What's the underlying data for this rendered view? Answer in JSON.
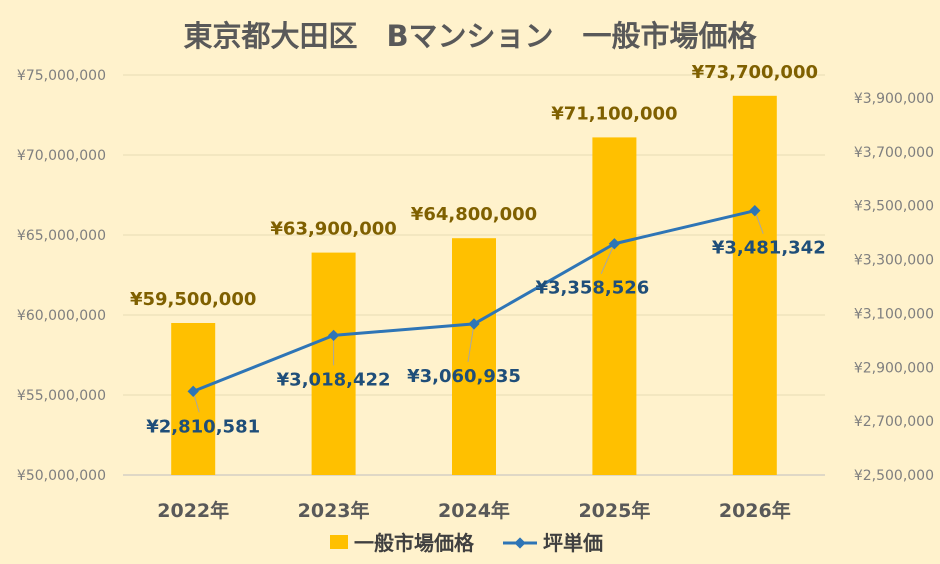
{
  "chart_data": {
    "type": "bar",
    "title": "東京都大田区　Bマンション　一般市場価格",
    "categories": [
      "2022年",
      "2023年",
      "2024年",
      "2025年",
      "2026年"
    ],
    "series": [
      {
        "name": "一般市場価格",
        "type": "bar",
        "axis": "left",
        "color": "#FFC000",
        "values": [
          59500000,
          63900000,
          64800000,
          71100000,
          73700000
        ],
        "labels": [
          "¥59,500,000",
          "¥63,900,000",
          "¥64,800,000",
          "¥71,100,000",
          "¥73,700,000"
        ]
      },
      {
        "name": "坪単価",
        "type": "line",
        "axis": "right",
        "color": "#2E75B6",
        "values": [
          2810581,
          3018422,
          3060935,
          3358526,
          3481342
        ],
        "labels": [
          "¥2,810,581",
          "¥3,018,422",
          "¥3,060,935",
          "¥3,358,526",
          "¥3,481,342"
        ]
      }
    ],
    "y_left": {
      "ylim": [
        50000000,
        75000000
      ],
      "ticks": [
        50000000,
        55000000,
        60000000,
        65000000,
        70000000,
        75000000
      ],
      "tick_labels": [
        "¥50,000,000",
        "¥55,000,000",
        "¥60,000,000",
        "¥65,000,000",
        "¥70,000,000",
        "¥75,000,000"
      ]
    },
    "y_right": {
      "ylim": [
        2500000,
        3985000
      ],
      "ticks": [
        2500000,
        2700000,
        2900000,
        3100000,
        3300000,
        3500000,
        3700000,
        3900000
      ],
      "tick_labels": [
        "¥2,500,000",
        "¥2,700,000",
        "¥2,900,000",
        "¥3,100,000",
        "¥3,300,000",
        "¥3,500,000",
        "¥3,700,000",
        "¥3,900,000"
      ]
    },
    "grid": true,
    "legend": "bottom",
    "colors": {
      "background": "#FFF2CC",
      "gridline": "#E7DCB5"
    }
  }
}
